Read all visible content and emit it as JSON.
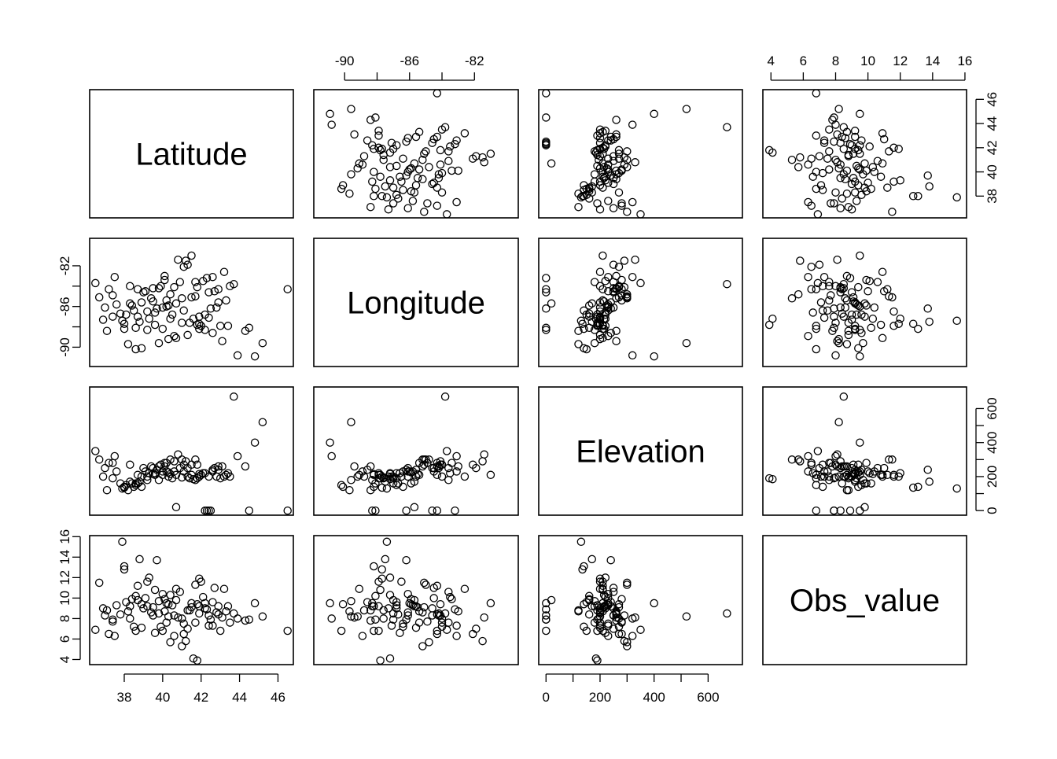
{
  "chart_data": {
    "type": "scatter-matrix",
    "variables": [
      "Latitude",
      "Longitude",
      "Elevation",
      "Obs_value"
    ],
    "axes": {
      "Latitude": {
        "lim": [
          36.2,
          46.8
        ],
        "ticks": [
          38,
          40,
          42,
          44,
          46
        ],
        "tick_labels": [
          "38",
          "40",
          "42",
          "44",
          "46"
        ]
      },
      "Longitude": {
        "lim": [
          -91.9,
          -79.3
        ],
        "ticks": [
          -90,
          -88,
          -86,
          -84,
          -82
        ],
        "tick_labels": [
          "-90",
          "",
          "-86",
          "",
          "-82"
        ]
      },
      "Elevation": {
        "lim": [
          -27,
          727
        ],
        "ticks": [
          0,
          100,
          200,
          300,
          400,
          500,
          600
        ],
        "tick_labels": [
          "0",
          "",
          "200",
          "",
          "400",
          "",
          "600"
        ]
      },
      "Obs_value": {
        "lim": [
          3.5,
          16.1
        ],
        "ticks": [
          4,
          6,
          8,
          10,
          12,
          14,
          16
        ],
        "tick_labels": [
          "4",
          "6",
          "8",
          "10",
          "12",
          "14",
          "16"
        ]
      }
    },
    "axis_placement": {
      "top": [
        false,
        true,
        false,
        true
      ],
      "bottom": [
        true,
        false,
        true,
        false
      ],
      "left": [
        false,
        true,
        false,
        true
      ],
      "right": [
        true,
        false,
        true,
        false
      ]
    },
    "point_style": "open-circle",
    "observations": [
      [
        36.5,
        -83.7,
        350,
        6.9
      ],
      [
        36.7,
        -85.1,
        300,
        11.5
      ],
      [
        36.9,
        -87.3,
        200,
        9.0
      ],
      [
        37.0,
        -86.1,
        250,
        8.3
      ],
      [
        37.1,
        -88.4,
        120,
        8.8
      ],
      [
        37.2,
        -84.3,
        280,
        6.5
      ],
      [
        37.4,
        -87.0,
        190,
        7.9
      ],
      [
        37.5,
        -83.1,
        320,
        6.3
      ],
      [
        37.6,
        -85.8,
        230,
        9.3
      ],
      [
        37.8,
        -86.7,
        160,
        8.4
      ],
      [
        37.9,
        -87.4,
        130,
        15.5
      ],
      [
        38.0,
        -88.2,
        140,
        13.1
      ],
      [
        38.0,
        -87.7,
        135,
        12.8
      ],
      [
        38.1,
        -86.8,
        150,
        9.6
      ],
      [
        38.2,
        -89.7,
        120,
        8.7
      ],
      [
        38.3,
        -85.7,
        170,
        9.2
      ],
      [
        38.4,
        -85.9,
        160,
        9.9
      ],
      [
        38.5,
        -86.4,
        140,
        7.2
      ],
      [
        38.6,
        -90.2,
        150,
        6.8
      ],
      [
        38.7,
        -84.3,
        210,
        11.2
      ],
      [
        38.8,
        -87.5,
        170,
        13.8
      ],
      [
        38.9,
        -90.1,
        140,
        9.4
      ],
      [
        39.0,
        -84.6,
        250,
        9.0
      ],
      [
        39.1,
        -84.5,
        230,
        10.0
      ],
      [
        39.2,
        -86.5,
        200,
        11.6
      ],
      [
        39.3,
        -87.2,
        220,
        12.0
      ],
      [
        39.4,
        -85.2,
        260,
        8.6
      ],
      [
        39.5,
        -84.2,
        250,
        8.3
      ],
      [
        39.6,
        -87.8,
        210,
        10.8
      ],
      [
        39.7,
        -86.2,
        240,
        13.7
      ],
      [
        39.8,
        -89.6,
        180,
        9.7
      ],
      [
        39.9,
        -84.0,
        270,
        7.2
      ],
      [
        40.0,
        -86.1,
        230,
        10.4
      ],
      [
        40.0,
        -88.2,
        210,
        6.8
      ],
      [
        40.1,
        -83.0,
        260,
        8.7
      ],
      [
        40.2,
        -85.4,
        280,
        7.6
      ],
      [
        40.3,
        -89.2,
        200,
        8.2
      ],
      [
        40.4,
        -84.8,
        300,
        5.7
      ],
      [
        40.5,
        -86.8,
        190,
        9.3
      ],
      [
        40.6,
        -88.9,
        230,
        6.3
      ],
      [
        40.7,
        -85.7,
        20,
        9.8
      ],
      [
        40.8,
        -81.4,
        330,
        8.1
      ],
      [
        41.0,
        -85.2,
        300,
        5.3
      ],
      [
        41.1,
        -82.1,
        270,
        6.5
      ],
      [
        41.2,
        -81.5,
        290,
        5.8
      ],
      [
        41.3,
        -81.9,
        250,
        7.0
      ],
      [
        41.4,
        -87.6,
        190,
        8.8
      ],
      [
        41.5,
        -81.0,
        210,
        9.5
      ],
      [
        41.6,
        -87.2,
        185,
        4.1
      ],
      [
        41.7,
        -83.6,
        180,
        7.6
      ],
      [
        41.8,
        -87.8,
        190,
        3.9
      ],
      [
        41.9,
        -87.7,
        200,
        11.9
      ],
      [
        42.0,
        -87.9,
        210,
        11.6
      ],
      [
        42.1,
        -83.5,
        220,
        10.1
      ],
      [
        42.2,
        -88.3,
        0,
        9.5
      ],
      [
        42.3,
        -83.2,
        0,
        8.9
      ],
      [
        42.4,
        -84.6,
        0,
        8.3
      ],
      [
        42.5,
        -86.2,
        0,
        7.9
      ],
      [
        42.6,
        -83.1,
        230,
        7.3
      ],
      [
        42.7,
        -84.5,
        250,
        11.0
      ],
      [
        42.8,
        -86.1,
        200,
        8.6
      ],
      [
        42.9,
        -85.6,
        240,
        9.2
      ],
      [
        43.0,
        -87.9,
        190,
        6.8
      ],
      [
        43.1,
        -89.4,
        260,
        8.1
      ],
      [
        43.2,
        -82.6,
        200,
        10.9
      ],
      [
        43.4,
        -87.9,
        220,
        9.2
      ],
      [
        43.5,
        -84.0,
        200,
        7.6
      ],
      [
        43.7,
        -83.8,
        670,
        8.5
      ],
      [
        43.9,
        -90.8,
        320,
        8.0
      ],
      [
        44.3,
        -88.4,
        260,
        7.8
      ],
      [
        44.5,
        -88.1,
        0,
        7.9
      ],
      [
        44.8,
        -90.9,
        400,
        9.5
      ],
      [
        45.2,
        -89.6,
        520,
        8.2
      ],
      [
        46.5,
        -84.3,
        0,
        6.8
      ],
      [
        40.2,
        -86.0,
        230,
        9.5
      ],
      [
        41.0,
        -87.6,
        195,
        8.0
      ],
      [
        39.5,
        -85.5,
        215,
        9.1
      ],
      [
        41.9,
        -87.0,
        200,
        8.5
      ],
      [
        40.4,
        -87.2,
        215,
        10.3
      ],
      [
        38.7,
        -87.0,
        160,
        9.8
      ],
      [
        41.5,
        -85.1,
        270,
        9.1
      ],
      [
        42.2,
        -86.8,
        220,
        9.0
      ],
      [
        39.8,
        -84.2,
        260,
        8.5
      ],
      [
        40.9,
        -83.6,
        250,
        10.6
      ],
      [
        37.4,
        -84.9,
        280,
        7.7
      ],
      [
        43.3,
        -85.4,
        210,
        8.7
      ],
      [
        41.1,
        -86.4,
        230,
        7.5
      ],
      [
        39.2,
        -88.3,
        180,
        9.2
      ],
      [
        42.6,
        -88.6,
        240,
        9.6
      ],
      [
        38.3,
        -84.0,
        270,
        8.0
      ],
      [
        40.7,
        -89.1,
        210,
        10.9
      ],
      [
        41.7,
        -85.0,
        300,
        11.3
      ],
      [
        38.9,
        -85.6,
        200,
        7.1
      ],
      [
        42.9,
        -84.3,
        260,
        8.4
      ],
      [
        40.1,
        -83.4,
        280,
        9.9
      ],
      [
        41.3,
        -88.8,
        200,
        8.8
      ],
      [
        39.6,
        -86.6,
        220,
        6.6
      ],
      [
        41.8,
        -84.1,
        270,
        9.4
      ],
      [
        38.6,
        -88.1,
        160,
        10.2
      ],
      [
        42.4,
        -87.1,
        200,
        7.3
      ],
      [
        40.6,
        -84.1,
        290,
        8.3
      ],
      [
        41.9,
        -88.2,
        215,
        9.2
      ],
      [
        40.3,
        -85.9,
        225,
        9.4
      ]
    ]
  }
}
